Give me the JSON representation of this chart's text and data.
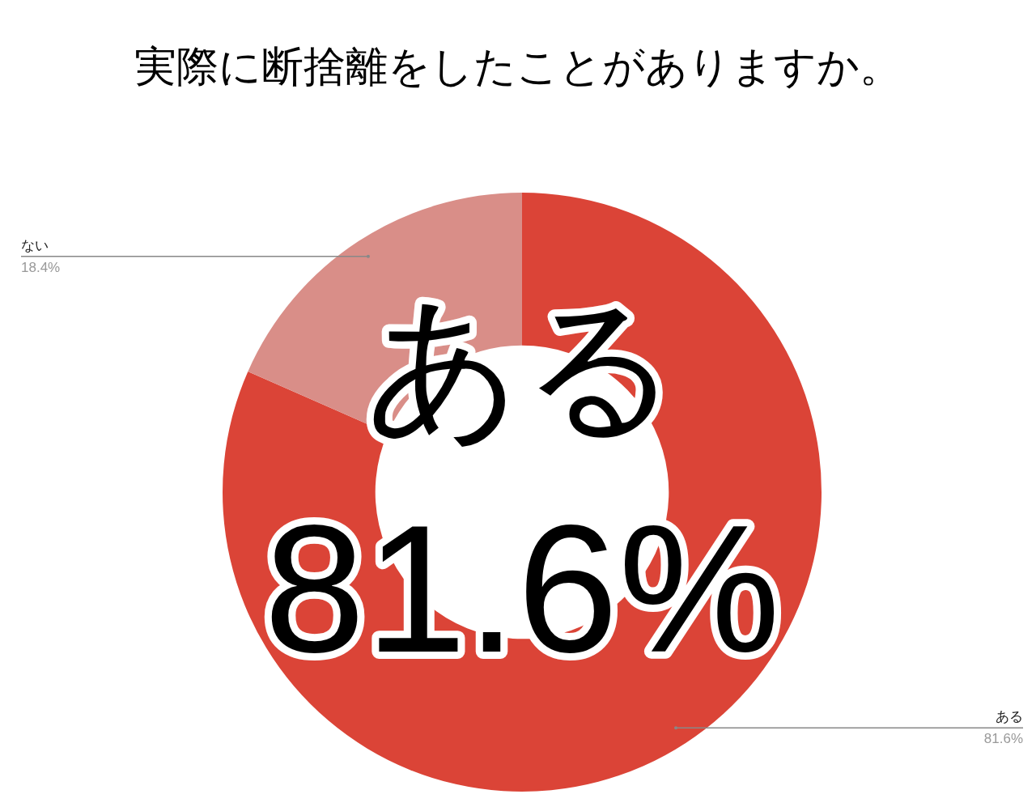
{
  "chart_data": {
    "type": "donut",
    "title": "実際に断捨離をしたことがありますか。",
    "categories": [
      "ある",
      "ない"
    ],
    "values": [
      81.6,
      18.4
    ],
    "colors": [
      "#db4437",
      "#d98e88"
    ],
    "value_labels": [
      "81.6%",
      "18.4%"
    ],
    "annotations": [
      "ある",
      "81.6%"
    ]
  }
}
